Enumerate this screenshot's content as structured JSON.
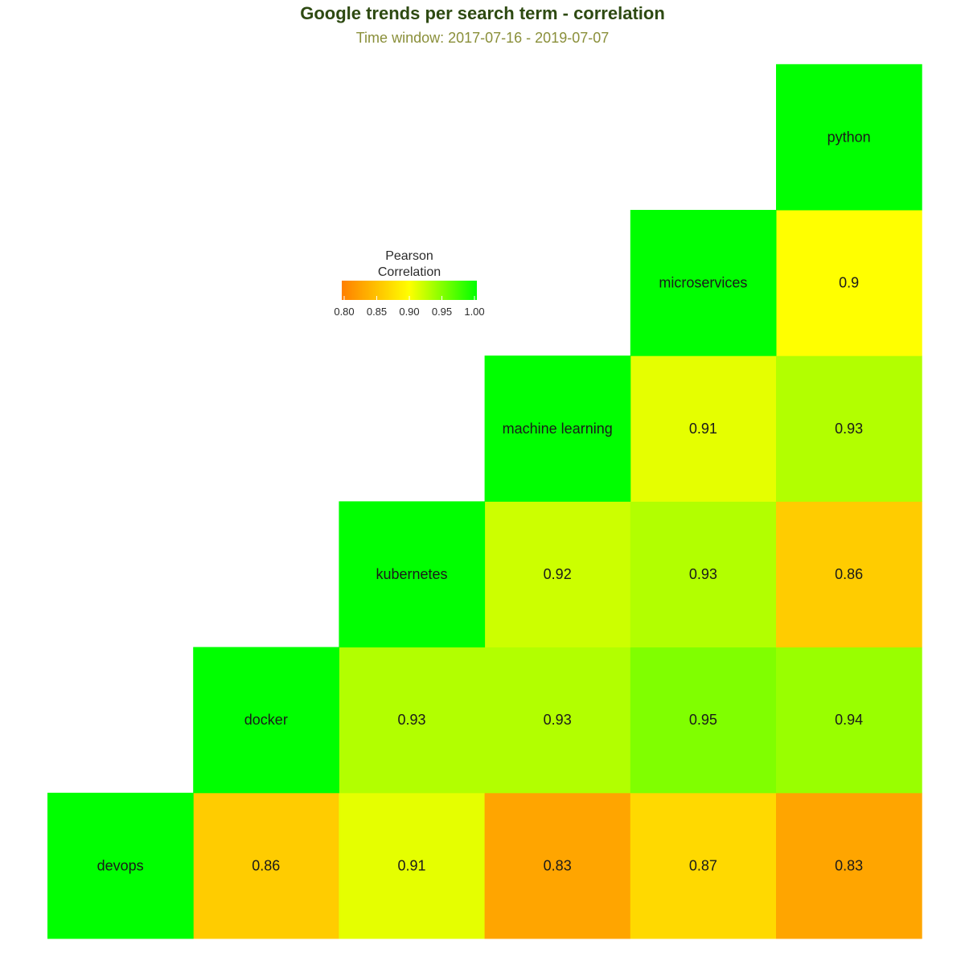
{
  "chart_data": {
    "type": "heatmap",
    "title": "Google trends per search term - correlation",
    "subtitle": "Time window: 2017-07-16 - 2019-07-07",
    "variables": [
      "devops",
      "docker",
      "kubernetes",
      "machine learning",
      "microservices",
      "python"
    ],
    "layout": "lower-triangle with variable names on the diagonal",
    "cells": [
      {
        "row": "docker",
        "col": "devops",
        "value": 0.86,
        "label": "0.86"
      },
      {
        "row": "kubernetes",
        "col": "devops",
        "value": 0.91,
        "label": "0.91"
      },
      {
        "row": "machine learning",
        "col": "devops",
        "value": 0.83,
        "label": "0.83"
      },
      {
        "row": "microservices",
        "col": "devops",
        "value": 0.87,
        "label": "0.87"
      },
      {
        "row": "python",
        "col": "devops",
        "value": 0.83,
        "label": "0.83"
      },
      {
        "row": "kubernetes",
        "col": "docker",
        "value": 0.93,
        "label": "0.93"
      },
      {
        "row": "machine learning",
        "col": "docker",
        "value": 0.93,
        "label": "0.93"
      },
      {
        "row": "microservices",
        "col": "docker",
        "value": 0.95,
        "label": "0.95"
      },
      {
        "row": "python",
        "col": "docker",
        "value": 0.94,
        "label": "0.94"
      },
      {
        "row": "machine learning",
        "col": "kubernetes",
        "value": 0.92,
        "label": "0.92"
      },
      {
        "row": "microservices",
        "col": "kubernetes",
        "value": 0.93,
        "label": "0.93"
      },
      {
        "row": "python",
        "col": "kubernetes",
        "value": 0.86,
        "label": "0.86"
      },
      {
        "row": "microservices",
        "col": "machine learning",
        "value": 0.91,
        "label": "0.91"
      },
      {
        "row": "python",
        "col": "machine learning",
        "value": 0.93,
        "label": "0.93"
      },
      {
        "row": "python",
        "col": "microservices",
        "value": 0.9,
        "label": "0.9"
      }
    ],
    "diagonal_value": 1.0,
    "color_scale": {
      "domain": [
        0.8,
        0.9,
        1.0
      ],
      "colors": [
        "#ff7f00",
        "#ffff00",
        "#00ff00"
      ]
    },
    "legend": {
      "title_line1": "Pearson",
      "title_line2": "Correlation",
      "ticks": [
        {
          "value": 0.8,
          "label": "0.80"
        },
        {
          "value": 0.85,
          "label": "0.85"
        },
        {
          "value": 0.9,
          "label": "0.90"
        },
        {
          "value": 0.95,
          "label": "0.95"
        },
        {
          "value": 1.0,
          "label": "1.00"
        }
      ],
      "range": [
        0.8,
        1.0
      ],
      "placement": "upper-left, inside plot"
    },
    "grid": false
  }
}
